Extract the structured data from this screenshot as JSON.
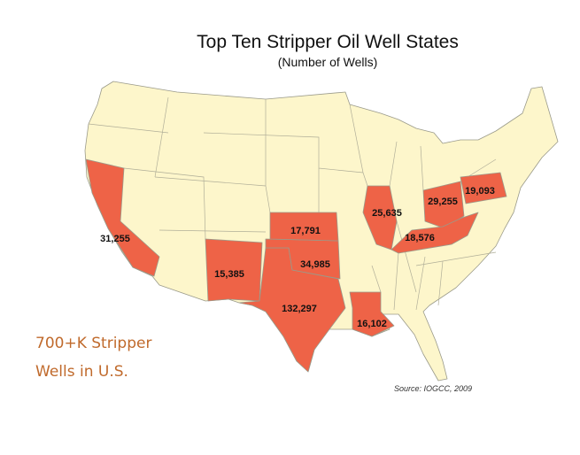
{
  "title": "Top Ten Stripper Oil Well States",
  "subtitle": "(Number of Wells)",
  "regions": [
    {
      "label": "31,255"
    },
    {
      "label": "15,385"
    },
    {
      "label": "132,297"
    },
    {
      "label": "34,985"
    },
    {
      "label": "17,791"
    },
    {
      "label": "16,102"
    },
    {
      "label": "25,635"
    },
    {
      "label": "29,255"
    },
    {
      "label": "18,576"
    },
    {
      "label": "19,093"
    }
  ],
  "annotation": [
    "700+K Stripper",
    "Wells in U.S."
  ],
  "source": "Source: IOGCC, 2009"
}
